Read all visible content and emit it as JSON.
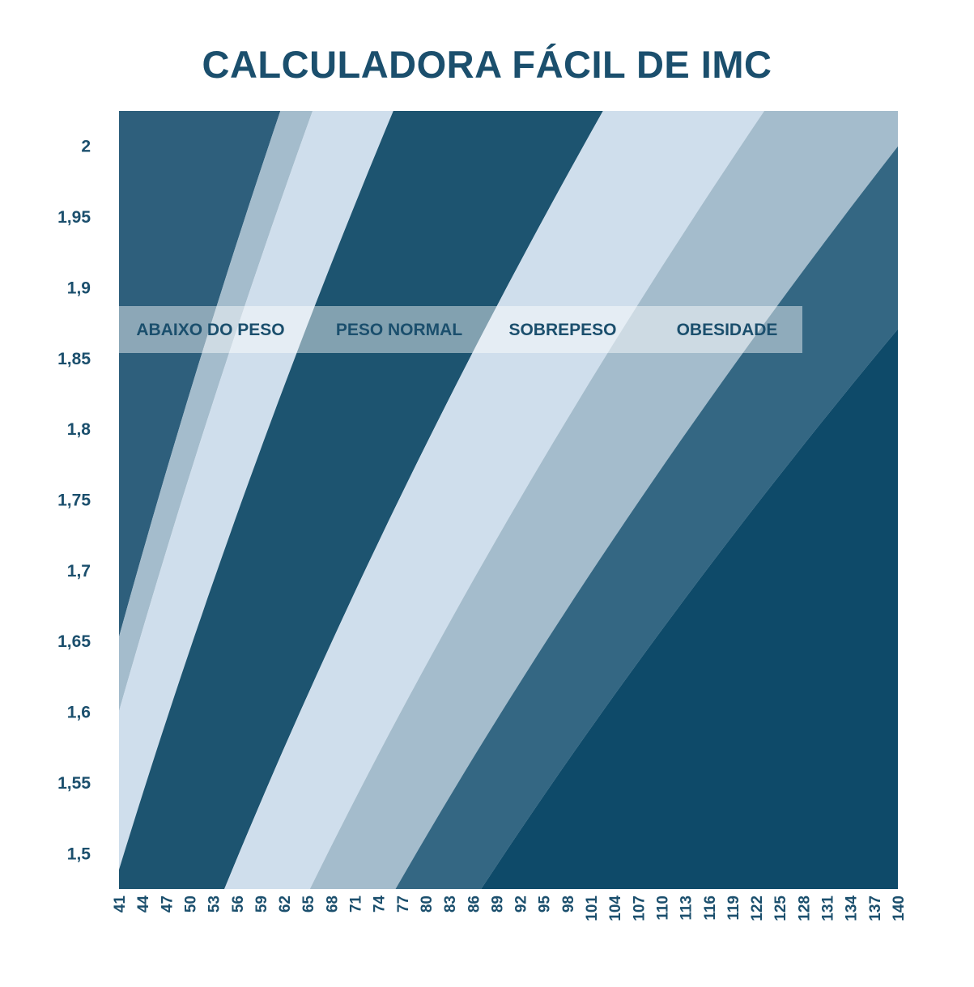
{
  "chart_data": {
    "type": "area",
    "title": "CALCULADORA FÁCIL DE IMC",
    "xlabel": "",
    "ylabel": "",
    "xlim": [
      41,
      140
    ],
    "ylim": [
      1.475,
      2.025
    ],
    "x_ticks": [
      "41",
      "44",
      "47",
      "50",
      "53",
      "56",
      "59",
      "62",
      "65",
      "68",
      "71",
      "74",
      "77",
      "80",
      "83",
      "86",
      "89",
      "92",
      "95",
      "98",
      "101",
      "104",
      "107",
      "110",
      "113",
      "116",
      "119",
      "122",
      "125",
      "128",
      "131",
      "134",
      "137",
      "140"
    ],
    "y_ticks": [
      {
        "value": 2,
        "label": "2"
      },
      {
        "value": 1.95,
        "label": "1,95"
      },
      {
        "value": 1.9,
        "label": "1,9"
      },
      {
        "value": 1.85,
        "label": "1,85"
      },
      {
        "value": 1.8,
        "label": "1,8"
      },
      {
        "value": 1.75,
        "label": "1,75"
      },
      {
        "value": 1.7,
        "label": "1,7"
      },
      {
        "value": 1.65,
        "label": "1,65"
      },
      {
        "value": 1.6,
        "label": "1,6"
      },
      {
        "value": 1.55,
        "label": "1,55"
      },
      {
        "value": 1.5,
        "label": "1,5"
      }
    ],
    "bmi_boundaries": [
      15,
      16,
      18.5,
      25,
      30,
      35,
      40
    ],
    "bands": [
      {
        "bmi_from": 0,
        "bmi_to": 15,
        "color": "#2e5f7c"
      },
      {
        "bmi_from": 15,
        "bmi_to": 16,
        "color": "#a4bccc"
      },
      {
        "bmi_from": 16,
        "bmi_to": 18.5,
        "color": "#cfdeec"
      },
      {
        "bmi_from": 18.5,
        "bmi_to": 25,
        "color": "#1d5470"
      },
      {
        "bmi_from": 25,
        "bmi_to": 30,
        "color": "#cfdeec"
      },
      {
        "bmi_from": 30,
        "bmi_to": 35,
        "color": "#a4bccc"
      },
      {
        "bmi_from": 35,
        "bmi_to": 40,
        "color": "#346783"
      },
      {
        "bmi_from": 40,
        "bmi_to": 100,
        "color": "#0e4a69"
      }
    ],
    "category_labels": [
      "ABAIXO DO PESO",
      "PESO NORMAL",
      "SOBREPESO",
      "OBESIDADE"
    ],
    "legend_placement": "top-left inside plot",
    "grid": false
  }
}
